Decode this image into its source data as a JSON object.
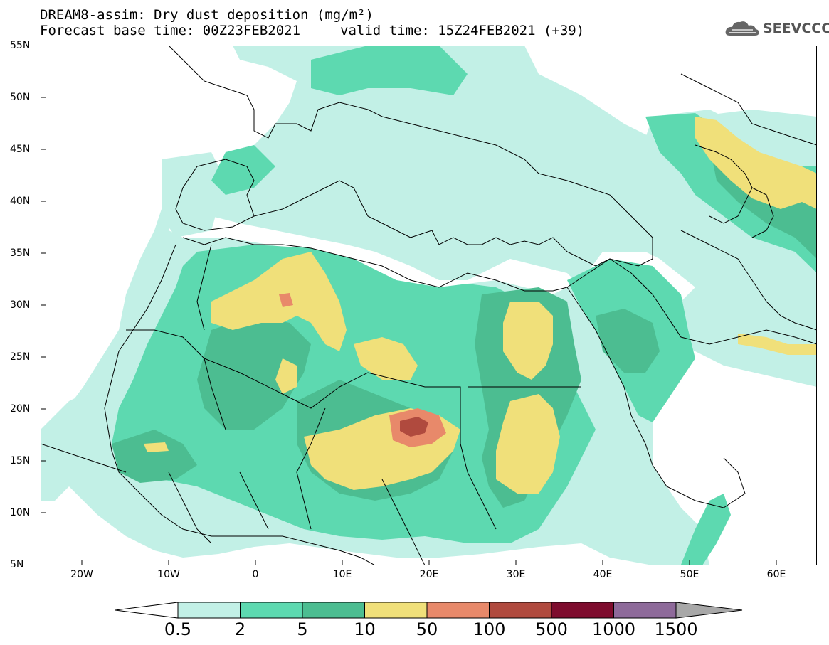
{
  "title": {
    "line1": "DREAM8-assim: Dry dust deposition (mg/m²)",
    "line2": "Forecast base time: 00Z23FEB2021",
    "line2b": "valid time: 15Z24FEB2021 (+39)"
  },
  "logo": {
    "icon": "cloud-icon",
    "text": "SEEVCCC"
  },
  "map": {
    "lat_labels": [
      "55N",
      "50N",
      "45N",
      "40N",
      "35N",
      "30N",
      "25N",
      "20N",
      "15N",
      "10N",
      "5N"
    ],
    "lon_labels": [
      "20W",
      "10W",
      "0",
      "10E",
      "20E",
      "30E",
      "40E",
      "50E",
      "60E"
    ]
  },
  "legend": {
    "levels": [
      "0.5",
      "2",
      "5",
      "10",
      "50",
      "100",
      "500",
      "1000",
      "1500"
    ],
    "colors": [
      "#c2f0e6",
      "#5dd9b0",
      "#4cbd91",
      "#f0e07a",
      "#e8896a",
      "#b04a3e",
      "#7e0c2e",
      "#8e6a9a",
      "#a8a8a8"
    ],
    "under_color": "#ffffff",
    "over_color": "#a8a8a8"
  }
}
